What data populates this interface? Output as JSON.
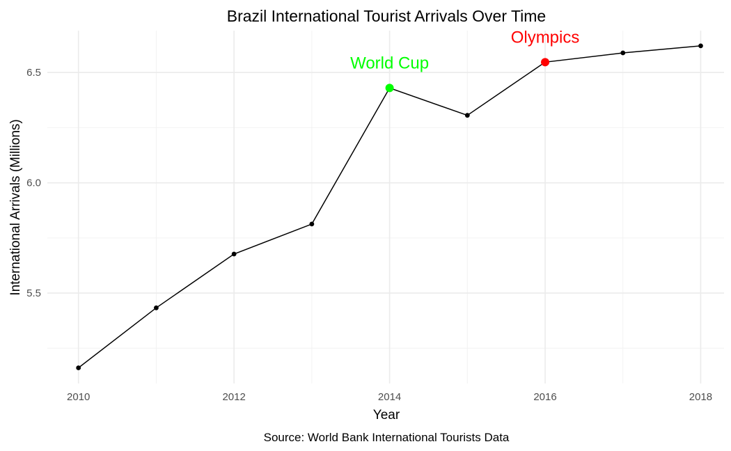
{
  "chart_data": {
    "type": "line",
    "title": "Brazil International Tourist Arrivals Over Time",
    "xlabel": "Year",
    "ylabel": "International Arrivals (Millions)",
    "caption": "Source: World Bank International Tourists Data",
    "x": [
      2010,
      2011,
      2012,
      2013,
      2014,
      2015,
      2016,
      2017,
      2018
    ],
    "values": [
      5.161,
      5.433,
      5.677,
      5.813,
      6.43,
      6.306,
      6.547,
      6.589,
      6.621
    ],
    "xlim": [
      2009.6,
      2018.3
    ],
    "ylim": [
      5.09,
      6.69
    ],
    "x_ticks": [
      "2010",
      "2012",
      "2014",
      "2016",
      "2018"
    ],
    "y_ticks": [
      "5.5",
      "6.0",
      "6.5"
    ],
    "grid": true,
    "line_color": "#000000",
    "annotations": [
      {
        "x": 2014,
        "y": 6.43,
        "label": "World Cup",
        "color": "#00ff00"
      },
      {
        "x": 2016,
        "y": 6.547,
        "label": "Olympics",
        "color": "#ff0000"
      }
    ]
  }
}
